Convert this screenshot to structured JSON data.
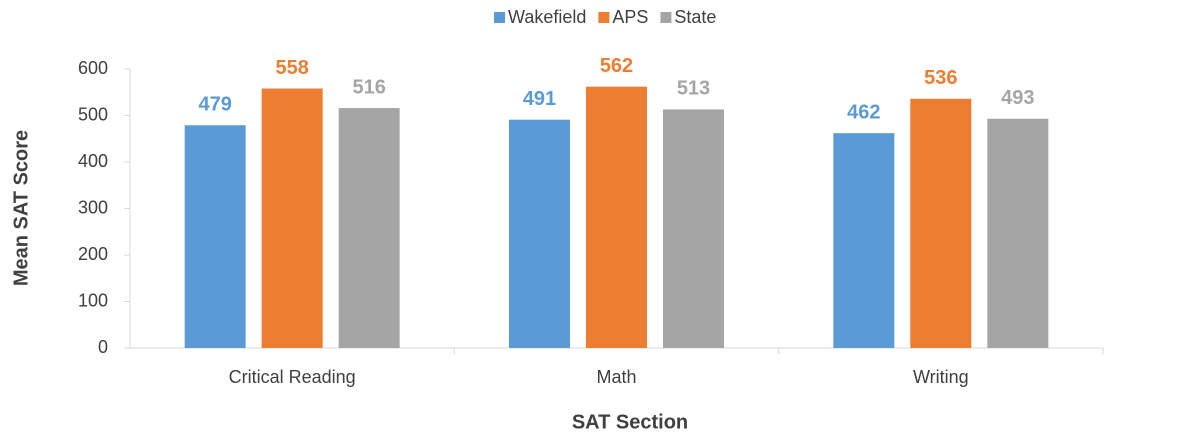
{
  "chart_data": {
    "type": "bar",
    "xlabel": "SAT Section",
    "ylabel": "Mean SAT Score",
    "categories": [
      "Critical Reading",
      "Math",
      "Writing"
    ],
    "series": [
      {
        "name": "Wakefield",
        "color": "#5b9bd5",
        "values": [
          479,
          491,
          462
        ]
      },
      {
        "name": "APS",
        "color": "#ed7d31",
        "values": [
          558,
          562,
          536
        ]
      },
      {
        "name": "State",
        "color": "#a5a5a5",
        "values": [
          516,
          513,
          493
        ]
      }
    ],
    "ylim": [
      0,
      600
    ],
    "yticks": [
      0,
      100,
      200,
      300,
      400,
      500,
      600
    ],
    "grid": false,
    "legend": "top"
  }
}
